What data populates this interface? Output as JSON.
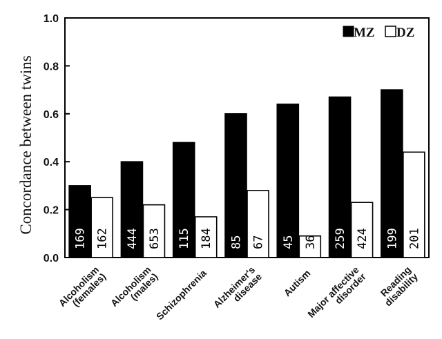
{
  "chart_data": {
    "type": "bar",
    "ylabel": "Concordance between twins",
    "ylim": [
      0,
      1.0
    ],
    "yticks": [
      "0.0",
      "0.2",
      "0.4",
      "0.6",
      "0.8",
      "1.0"
    ],
    "legend_position": "top-right",
    "categories": [
      [
        "Alcoholism",
        "(females)"
      ],
      [
        "Alcoholism",
        "(males)"
      ],
      [
        "Schizophrenia"
      ],
      [
        "Alzheimer's",
        "disease"
      ],
      [
        "Autism"
      ],
      [
        "Major affective",
        "disorder"
      ],
      [
        "Reading",
        "disability"
      ]
    ],
    "series": [
      {
        "name": "MZ",
        "color": "#000000",
        "values": [
          0.3,
          0.4,
          0.48,
          0.6,
          0.64,
          0.67,
          0.7
        ],
        "labels": [
          "169",
          "444",
          "115",
          "85",
          "45",
          "259",
          "199"
        ]
      },
      {
        "name": "DZ",
        "color": "#ffffff",
        "values": [
          0.25,
          0.22,
          0.17,
          0.28,
          0.09,
          0.23,
          0.44
        ],
        "labels": [
          "162",
          "653",
          "184",
          "67",
          "36",
          "424",
          "201"
        ]
      }
    ]
  }
}
